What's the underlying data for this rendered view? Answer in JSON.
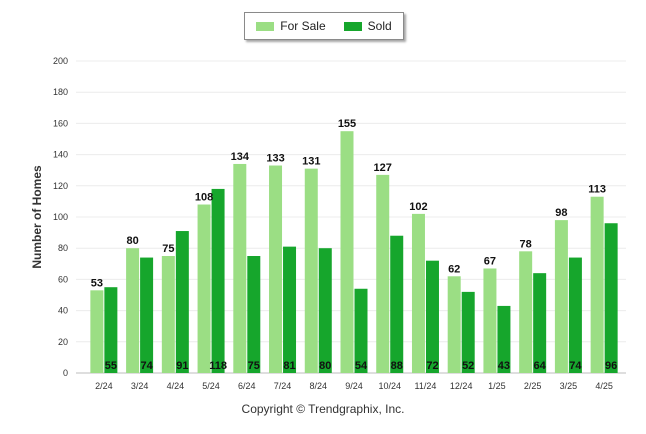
{
  "legend": [
    {
      "label": "For Sale",
      "color": "#9bde84"
    },
    {
      "label": "Sold",
      "color": "#16a62c"
    }
  ],
  "footer": "Copyright © Trendgraphix, Inc.",
  "chart_data": {
    "type": "bar",
    "title": "",
    "xlabel": "",
    "ylabel": "Number of Homes",
    "ylim": [
      0,
      200
    ],
    "yticks": [
      0,
      20,
      40,
      60,
      80,
      100,
      120,
      140,
      160,
      180,
      200
    ],
    "grid": true,
    "legend_position": "top-center",
    "categories": [
      "2/24",
      "3/24",
      "4/24",
      "5/24",
      "6/24",
      "7/24",
      "8/24",
      "9/24",
      "10/24",
      "11/24",
      "12/24",
      "1/25",
      "2/25",
      "3/25",
      "4/25"
    ],
    "series": [
      {
        "name": "For Sale",
        "color": "#9bde84",
        "values": [
          53,
          80,
          75,
          108,
          134,
          133,
          131,
          155,
          127,
          102,
          62,
          67,
          78,
          98,
          113
        ]
      },
      {
        "name": "Sold",
        "color": "#16a62c",
        "values": [
          55,
          74,
          91,
          118,
          75,
          81,
          80,
          54,
          88,
          72,
          52,
          43,
          64,
          74,
          96
        ]
      }
    ]
  }
}
